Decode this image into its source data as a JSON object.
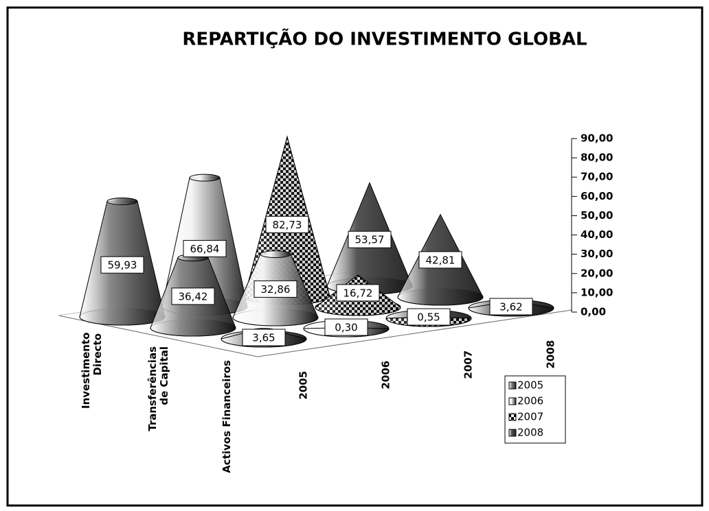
{
  "chart_data": {
    "type": "cone3d",
    "title": "REPARTIÇÃO DO INVESTIMENTO GLOBAL",
    "categories": [
      "Investimento Directo",
      "Transferências de Capital",
      "Activos Financeiros"
    ],
    "series": [
      {
        "name": "2005",
        "color": "#8a8a8a",
        "values": [
          59.93,
          36.42,
          3.65
        ],
        "value_labels": [
          "59,93",
          "36,42",
          "3,65"
        ]
      },
      {
        "name": "2006",
        "color": "#f4f4f4",
        "values": [
          66.84,
          32.86,
          0.3
        ],
        "value_labels": [
          "66,84",
          "32,86",
          "0,30"
        ]
      },
      {
        "name": "2007",
        "color": "#6a6a6a",
        "values": [
          82.73,
          16.72,
          0.55
        ],
        "value_labels": [
          "82,73",
          "16,72",
          "0,55"
        ]
      },
      {
        "name": "2008",
        "color": "#555555",
        "values": [
          53.57,
          42.81,
          3.62
        ],
        "value_labels": [
          "53,57",
          "42,81",
          "3,62"
        ]
      }
    ],
    "ylim": [
      0,
      90
    ],
    "yticks": [
      {
        "value": 0,
        "label": "0,00"
      },
      {
        "value": 10,
        "label": "10,00"
      },
      {
        "value": 20,
        "label": "20,00"
      },
      {
        "value": 30,
        "label": "30,00"
      },
      {
        "value": 40,
        "label": "40,00"
      },
      {
        "value": 50,
        "label": "50,00"
      },
      {
        "value": 60,
        "label": "60,00"
      },
      {
        "value": 70,
        "label": "70,00"
      },
      {
        "value": 80,
        "label": "80,00"
      },
      {
        "value": 90,
        "label": "90,00"
      }
    ]
  }
}
